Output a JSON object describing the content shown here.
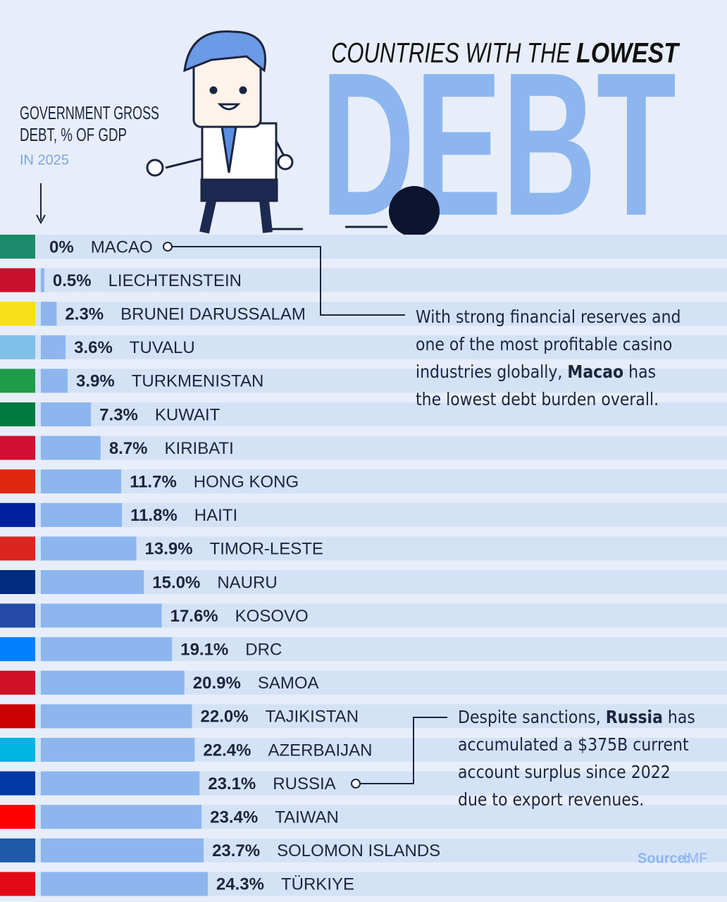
{
  "chart_data": {
    "type": "bar",
    "title_lead": "COUNTRIES WITH THE",
    "title_emphasis": "LOWEST",
    "title_big": "DEBT",
    "subtitle_line1": "GOVERNMENT GROSS",
    "subtitle_line2": "DEBT, % OF GDP",
    "year_note": "IN 2025",
    "categories": [
      "MACAO",
      "LIECHTENSTEIN",
      "BRUNEI DARUSSALAM",
      "TUVALU",
      "TURKMENISTAN",
      "KUWAIT",
      "KIRIBATI",
      "HONG KONG",
      "HAITI",
      "TIMOR-LESTE",
      "NAURU",
      "KOSOVO",
      "DRC",
      "SAMOA",
      "TAJIKISTAN",
      "AZERBAIJAN",
      "RUSSIA",
      "TAIWAN",
      "SOLOMON ISLANDS",
      "TÜRKIYE"
    ],
    "values": [
      0,
      0.5,
      2.3,
      3.6,
      3.9,
      7.3,
      8.7,
      11.7,
      11.8,
      13.9,
      15.0,
      17.6,
      19.1,
      20.9,
      22.0,
      22.4,
      23.1,
      23.4,
      23.7,
      24.3
    ],
    "value_labels": [
      "0%",
      "0.5%",
      "2.3%",
      "3.6%",
      "3.9%",
      "7.3%",
      "8.7%",
      "11.7%",
      "11.8%",
      "13.9%",
      "15.0%",
      "17.6%",
      "19.1%",
      "20.9%",
      "22.0%",
      "22.4%",
      "23.1%",
      "23.4%",
      "23.7%",
      "24.3%"
    ],
    "color": "#8db6ee",
    "annotations": [
      {
        "parts": [
          "With strong financial reserves and one of the most profitable casino industries globally, ",
          "Macao",
          " has the lowest debt burden overall."
        ]
      },
      {
        "parts": [
          "Despite sanctions, ",
          "Russia",
          " has accumulated a $375B current account surplus since 2022 due to export revenues."
        ]
      }
    ],
    "source_label": "Source:",
    "source": "IMF"
  }
}
